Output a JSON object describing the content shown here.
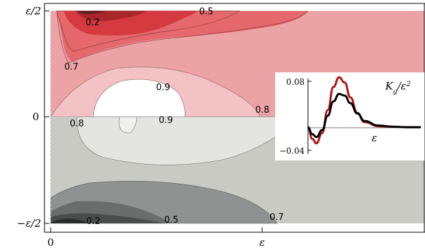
{
  "chart_data": {
    "type": "contour",
    "title": "",
    "xlabel": "",
    "ylabel": "",
    "x_ticks": [
      "0",
      "ε"
    ],
    "y_ticks": [
      "−ε/2",
      "0",
      "ε/2"
    ],
    "upper_half": {
      "color_family": "red",
      "contour_levels": [
        "0.2",
        "0.5",
        "0.7",
        "0.8",
        "0.9"
      ]
    },
    "lower_half": {
      "color_family": "gray",
      "contour_levels": [
        "0.8",
        "0.9",
        "0.7",
        "0.5",
        "0.2"
      ]
    },
    "inset": {
      "type": "line",
      "title": "K_g/ε^2",
      "y_ticks": [
        "0.08",
        "−0.04"
      ],
      "y_values": [
        0.08,
        -0.04
      ],
      "x_label": "ε",
      "series": [
        {
          "color": "#b01010",
          "x": [
            0,
            0.3,
            0.6,
            1.0,
            1.4,
            1.8,
            2.2,
            2.6,
            3.0,
            3.5,
            4.0,
            5.0,
            6.0,
            7.0,
            8.0
          ],
          "y": [
            0,
            -0.02,
            -0.028,
            -0.01,
            0.03,
            0.07,
            0.087,
            0.078,
            0.052,
            0.025,
            0.009,
            0.002,
            0.001,
            0,
            0
          ]
        },
        {
          "color": "#000000",
          "x": [
            0,
            0.3,
            0.6,
            1.0,
            1.4,
            1.8,
            2.2,
            2.6,
            3.0,
            3.5,
            4.0,
            5.0,
            6.0,
            7.0,
            8.0
          ],
          "y": [
            0,
            -0.012,
            -0.017,
            -0.005,
            0.02,
            0.045,
            0.058,
            0.055,
            0.042,
            0.024,
            0.011,
            0.003,
            0.001,
            0,
            0
          ]
        }
      ],
      "xlim": [
        0,
        8
      ],
      "ylim": [
        -0.045,
        0.09
      ]
    }
  }
}
